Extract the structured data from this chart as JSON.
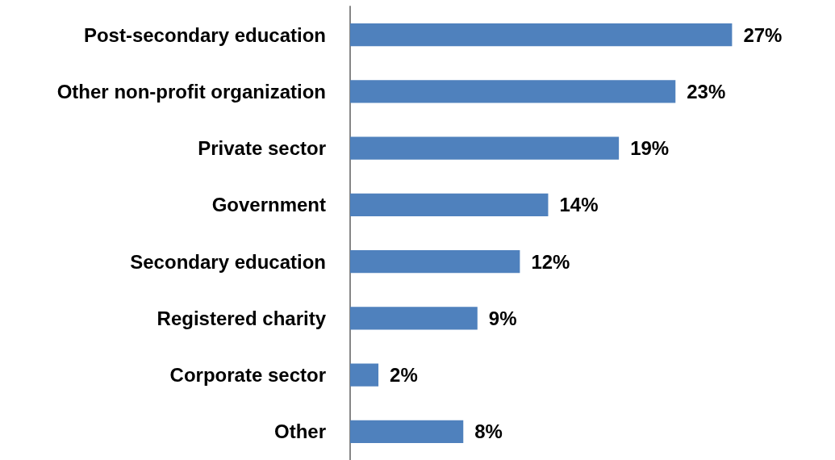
{
  "chart_data": {
    "type": "bar",
    "orientation": "horizontal",
    "categories": [
      "Post-secondary education",
      "Other non-profit organization",
      "Private sector",
      "Government",
      "Secondary education",
      "Registered charity",
      "Corporate sector",
      "Other"
    ],
    "values": [
      27,
      23,
      19,
      14,
      12,
      9,
      2,
      8
    ],
    "value_labels": [
      "27%",
      "23%",
      "19%",
      "14%",
      "12%",
      "9%",
      "2%",
      "8%"
    ],
    "color": "#4f81bd"
  }
}
